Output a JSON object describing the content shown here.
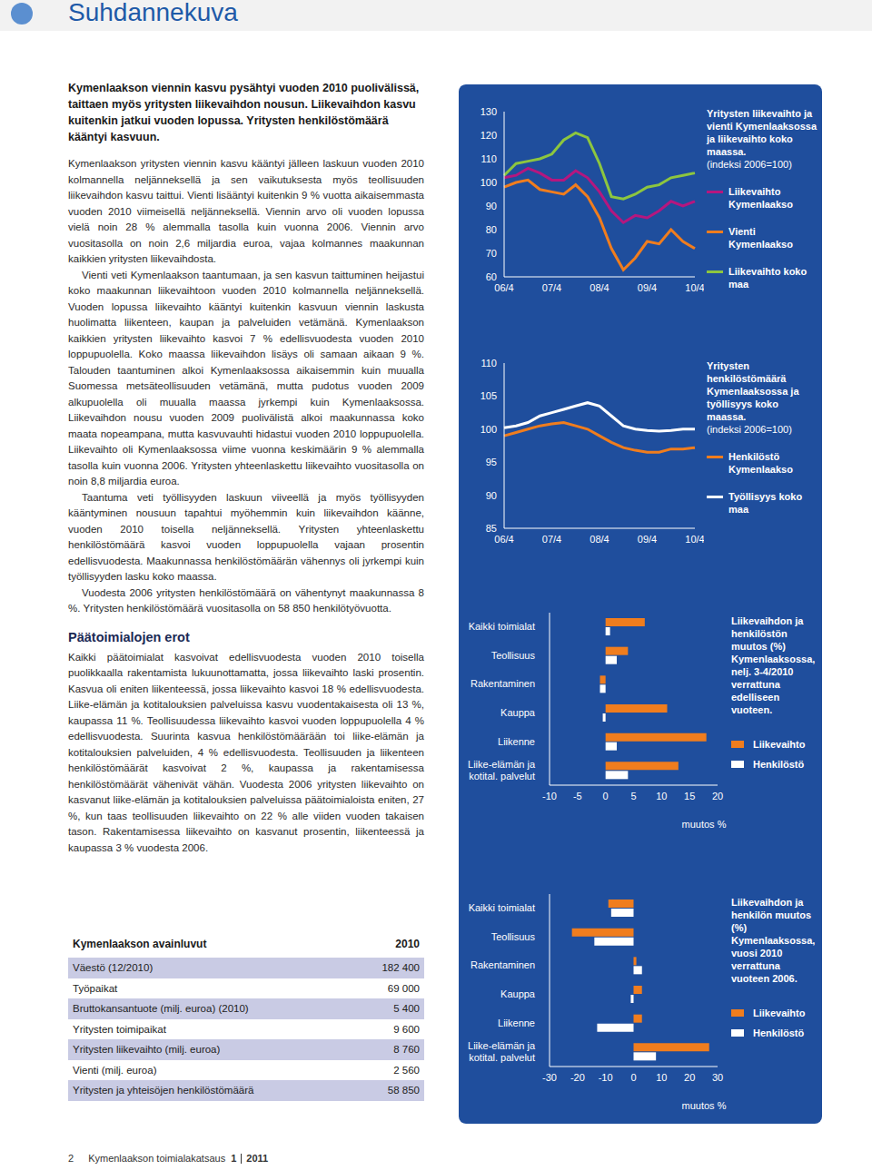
{
  "header": {
    "title": "Suhdannekuva"
  },
  "intro": "Kymenlaakson viennin kasvu pysähtyi vuoden 2010 puolivälissä, taittaen myös yritysten liikevaihdon nousun. Liikevaihdon kasvu kuitenkin jatkui vuoden lopussa. Yritysten henkilöstömäärä kääntyi kasvuun.",
  "paragraphs": [
    "Kymenlaakson yritysten viennin kasvu kääntyi jälleen laskuun vuoden 2010 kolmannella neljänneksellä ja sen vaikutuksesta myös teollisuuden liikevaihdon kasvu taittui. Vienti lisääntyi kuitenkin 9 % vuotta aikaisemmasta vuoden 2010 viimeisellä neljänneksellä. Viennin arvo oli vuoden lopussa vielä noin 28 % alemmalla tasolla kuin vuonna 2006. Viennin arvo vuositasolla on noin 2,6 miljardia euroa, vajaa kolmannes maakunnan kaikkien yritysten liikevaihdosta.",
    "Vienti veti Kymenlaakson taantumaan, ja sen kasvun taittuminen heijastui koko maakunnan liikevaihtoon vuoden 2010 kolmannella neljänneksellä. Vuoden lopussa liikevaihto kääntyi kuitenkin kasvuun viennin laskusta huolimatta liikenteen, kaupan ja palveluiden vetämänä. Kymenlaakson kaikkien yritysten liikevaihto kasvoi 7 % edellisvuodesta vuoden 2010 loppupuolella. Koko maassa liikevaihdon lisäys oli samaan aikaan 9 %. Talouden taantuminen alkoi Kymenlaaksossa aikaisemmin kuin muualla Suomessa metsäteollisuuden vetämänä, mutta pudotus vuoden 2009 alkupuolella oli muualla maassa jyrkempi kuin Kymenlaaksossa. Liikevaihdon nousu vuoden 2009 puolivälistä alkoi maakunnassa koko maata nopeampana, mutta kasvuvauhti hidastui vuoden 2010 loppupuolella. Liikevaihto oli Kymenlaaksossa viime vuonna keskimäärin 9 % alemmalla tasolla kuin vuonna 2006. Yritysten yhteenlaskettu liikevaihto vuositasolla on noin 8,8 miljardia euroa.",
    "Taantuma veti työllisyyden laskuun viiveellä ja myös työllisyyden kääntyminen nousuun tapahtui myöhemmin kuin liikevaihdon käänne, vuoden 2010 toisella neljänneksellä. Yritysten yhteenlaskettu henkilöstömäärä kasvoi vuoden loppupuolella vajaan prosentin edellisvuodesta. Maakunnassa henkilöstömäärän vähennys oli jyrkempi kuin työllisyyden lasku koko maassa.",
    "Vuodesta 2006 yritysten henkilöstömäärä on vähentynyt maakunnassa 8 %. Yritysten henkilöstömäärä vuositasolla on 58 850 henkilötyövuotta."
  ],
  "section_heading": "Päätoimialojen erot",
  "section_paragraphs": [
    "Kaikki päätoimialat kasvoivat edellisvuodesta vuoden 2010 toisella puolikkaalla rakentamista lukuunottamatta, jossa liikevaihto laski prosentin. Kasvua oli eniten liikenteessä, jossa liikevaihto kasvoi 18 % edellisvuodesta. Liike-elämän ja kotitalouksien palveluissa kasvu vuodentakaisesta oli 13 %, kaupassa 11 %. Teollisuudessa liikevaihto kasvoi vuoden loppupuolella 4 % edellisvuodesta. Suurinta kasvua henkilöstömäärään toi liike-elämän ja kotitalouksien palveluiden, 4 % edellisvuodesta. Teollisuuden ja liikenteen henkilöstömäärät kasvoivat 2 %, kaupassa ja rakentamisessa henkilöstömäärät vähenivät vähän. Vuodesta 2006 yritysten liikevaihto on kasvanut liike-elämän ja kotitalouksien palveluissa päätoimialoista eniten, 27 %, kun taas teollisuuden liikevaihto on 22 % alle viiden vuoden takaisen tason. Rakentamisessa liikevaihto on kasvanut prosentin, liikenteessä ja kaupassa 3 % vuodesta 2006."
  ],
  "table": {
    "header": [
      "Kymenlaakson avainluvut",
      "2010"
    ],
    "rows": [
      [
        "Väestö (12/2010)",
        "182 400"
      ],
      [
        "Työpaikat",
        "69 000"
      ],
      [
        "Bruttokansantuote (milj. euroa) (2010)",
        "5 400"
      ],
      [
        "Yritysten toimipaikat",
        "9 600"
      ],
      [
        "Yritysten liikevaihto (milj. euroa)",
        "8 760"
      ],
      [
        "Vienti (milj. euroa)",
        "2 560"
      ],
      [
        "Yritysten ja yhteisöjen henkilöstömäärä",
        "58 850"
      ]
    ]
  },
  "footer": {
    "page": "2",
    "publication": "Kymenlaakson toimialakatsaus",
    "issue": "1",
    "year": "2011"
  },
  "chart_data": [
    {
      "type": "line",
      "title": "Yritysten liikevaihto ja vienti Kymenlaaksossa ja liikevaihto koko maassa.",
      "subtitle": "(indeksi 2006=100)",
      "legend": "right",
      "categories": [
        "06/4",
        null,
        null,
        null,
        "07/4",
        null,
        null,
        null,
        "08/4",
        null,
        null,
        null,
        "09/4",
        null,
        null,
        null,
        "10/4"
      ],
      "series": [
        {
          "name": "Liikevaihto Kymenlaakso",
          "color": "#b5177f",
          "values": [
            102,
            103,
            106,
            104,
            101,
            101,
            105,
            102,
            96,
            88,
            83,
            86,
            85,
            88,
            92,
            90,
            92
          ]
        },
        {
          "name": "Vienti Kymenlaakso",
          "color": "#f07d1e",
          "values": [
            98,
            100,
            101,
            97,
            96,
            95,
            99,
            94,
            85,
            72,
            63,
            68,
            75,
            74,
            80,
            75,
            72
          ]
        },
        {
          "name": "Liikevaihto koko maa",
          "color": "#8dc63f",
          "values": [
            103,
            108,
            109,
            110,
            112,
            118,
            121,
            119,
            108,
            94,
            93,
            95,
            98,
            99,
            102,
            103,
            104
          ]
        }
      ],
      "ylim": [
        60,
        130
      ],
      "yticks": [
        60,
        70,
        80,
        90,
        100,
        110,
        120,
        130
      ],
      "grid": false
    },
    {
      "type": "line",
      "title": "Yritysten henkilöstömäärä Kymenlaaksossa ja työllisyys koko maassa.",
      "subtitle": "(indeksi 2006=100)",
      "legend": "right",
      "categories": [
        "06/4",
        null,
        null,
        null,
        "07/4",
        null,
        null,
        null,
        "08/4",
        null,
        null,
        null,
        "09/4",
        null,
        null,
        null,
        "10/4"
      ],
      "series": [
        {
          "name": "Henkilöstö Kymenlaakso",
          "color": "#f07d1e",
          "values": [
            99,
            99.5,
            100,
            100.5,
            100.8,
            101,
            100.5,
            100,
            99,
            98,
            97.2,
            96.8,
            96.5,
            96.5,
            97,
            97,
            97.2
          ]
        },
        {
          "name": "Työllisyys koko maa",
          "color": "#ffffff",
          "values": [
            100.2,
            100.5,
            101,
            102,
            102.5,
            103,
            103.5,
            104,
            103.5,
            102,
            100.5,
            100,
            99.8,
            99.7,
            99.8,
            100,
            100
          ]
        }
      ],
      "ylim": [
        85,
        110
      ],
      "yticks": [
        85,
        90,
        95,
        100,
        105,
        110
      ],
      "grid": false
    },
    {
      "type": "bar",
      "orientation": "horizontal",
      "title": "Liikevaihdon ja henkilöstön muutos (%) Kymenlaaksossa, nelj. 3-4/2010 verrattuna edelliseen vuoteen.",
      "x_label": "muutos %",
      "legend": "right",
      "categories": [
        "Kaikki toimialat",
        "Teollisuus",
        "Rakentaminen",
        "Kauppa",
        "Liikenne",
        "Liike-elämän ja kotital. palvelut"
      ],
      "series": [
        {
          "name": "Liikevaihto",
          "color": "#f07d1e",
          "values": [
            7,
            4,
            -1,
            11,
            18,
            13
          ]
        },
        {
          "name": "Henkilöstö",
          "color": "#ffffff",
          "values": [
            0.8,
            2,
            -1,
            -0.5,
            2,
            4
          ]
        }
      ],
      "xlim": [
        -10,
        20
      ],
      "xticks": [
        -10,
        -5,
        0,
        5,
        10,
        15,
        20
      ],
      "grid": false
    },
    {
      "type": "bar",
      "orientation": "horizontal",
      "title": "Liikevaihdon ja henkilön muutos (%) Kymenlaaksossa, vuosi 2010 verrattuna vuoteen 2006.",
      "x_label": "muutos %",
      "legend": "right",
      "categories": [
        "Kaikki toimialat",
        "Teollisuus",
        "Rakentaminen",
        "Kauppa",
        "Liikenne",
        "Liike-elämän ja kotital. palvelut"
      ],
      "series": [
        {
          "name": "Liikevaihto",
          "color": "#f07d1e",
          "values": [
            -9,
            -22,
            1,
            3,
            3,
            27
          ]
        },
        {
          "name": "Henkilöstö",
          "color": "#ffffff",
          "values": [
            -8,
            -14,
            3,
            -1,
            -13,
            8
          ]
        }
      ],
      "xlim": [
        -30,
        30
      ],
      "xticks": [
        -30,
        -20,
        -10,
        0,
        10,
        20,
        30
      ],
      "grid": false
    }
  ]
}
